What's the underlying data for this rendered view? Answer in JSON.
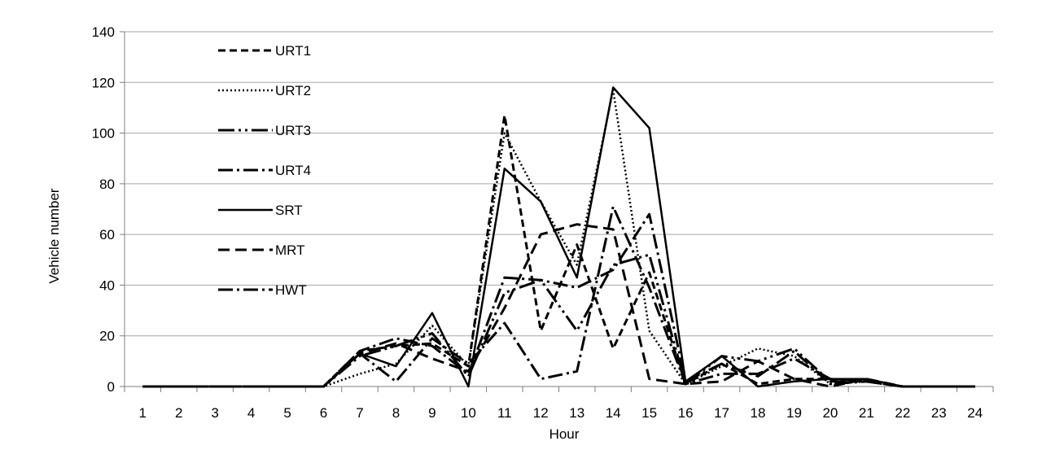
{
  "chart_data": {
    "type": "line",
    "title": "",
    "xlabel": "Hour",
    "ylabel": "Vehicle number",
    "ylim": [
      0,
      140
    ],
    "y_ticks": [
      "0",
      "20",
      "40",
      "60",
      "80",
      "100",
      "120",
      "140"
    ],
    "categories": [
      "1",
      "2",
      "3",
      "4",
      "5",
      "6",
      "7",
      "8",
      "9",
      "10",
      "11",
      "12",
      "13",
      "14",
      "15",
      "16",
      "17",
      "18",
      "19",
      "20",
      "21",
      "22",
      "23",
      "24"
    ],
    "grid": "horizontal",
    "legend_position": "top-left",
    "series": [
      {
        "name": "URT1",
        "dash": "9 5",
        "width": 3,
        "values": [
          0,
          0,
          0,
          0,
          0,
          0,
          14,
          16,
          17,
          8,
          107,
          22,
          56,
          15,
          45,
          1,
          9,
          1,
          3,
          3,
          2,
          0,
          0,
          0
        ]
      },
      {
        "name": "URT2",
        "dash": "2 3",
        "width": 2.5,
        "values": [
          0,
          0,
          0,
          0,
          0,
          0,
          5,
          9,
          24,
          8,
          100,
          73,
          48,
          117,
          22,
          1,
          8,
          15,
          12,
          1,
          2,
          0,
          0,
          0
        ]
      },
      {
        "name": "URT3",
        "dash": "20 5 3 5 3 5",
        "width": 3,
        "values": [
          0,
          0,
          0,
          0,
          0,
          0,
          12,
          16,
          21,
          4,
          37,
          42,
          22,
          48,
          52,
          1,
          12,
          10,
          15,
          2,
          2,
          0,
          0,
          0
        ]
      },
      {
        "name": "URT4",
        "dash": "18 5 3 5",
        "width": 3,
        "values": [
          0,
          0,
          0,
          0,
          0,
          0,
          14,
          19,
          16,
          5,
          43,
          42,
          39,
          46,
          68,
          2,
          9,
          4,
          14,
          1,
          2,
          0,
          0,
          0
        ]
      },
      {
        "name": "SRT",
        "dash": "",
        "width": 2.5,
        "values": [
          0,
          0,
          0,
          0,
          0,
          0,
          13,
          8,
          29,
          0,
          86,
          73,
          43,
          118,
          102,
          2,
          12,
          0,
          2,
          3,
          3,
          0,
          0,
          0
        ]
      },
      {
        "name": "MRT",
        "dash": "14 7",
        "width": 3,
        "values": [
          0,
          0,
          0,
          0,
          0,
          0,
          13,
          17,
          11,
          6,
          31,
          60,
          64,
          62,
          3,
          1,
          2,
          10,
          3,
          0,
          3,
          0,
          0,
          0
        ]
      },
      {
        "name": "HWT",
        "dash": "18 5 3 5",
        "width": 3,
        "values": [
          0,
          0,
          0,
          0,
          0,
          0,
          13,
          2,
          19,
          9,
          25,
          3,
          6,
          71,
          39,
          1,
          5,
          5,
          11,
          3,
          2,
          0,
          0,
          0
        ]
      }
    ]
  }
}
